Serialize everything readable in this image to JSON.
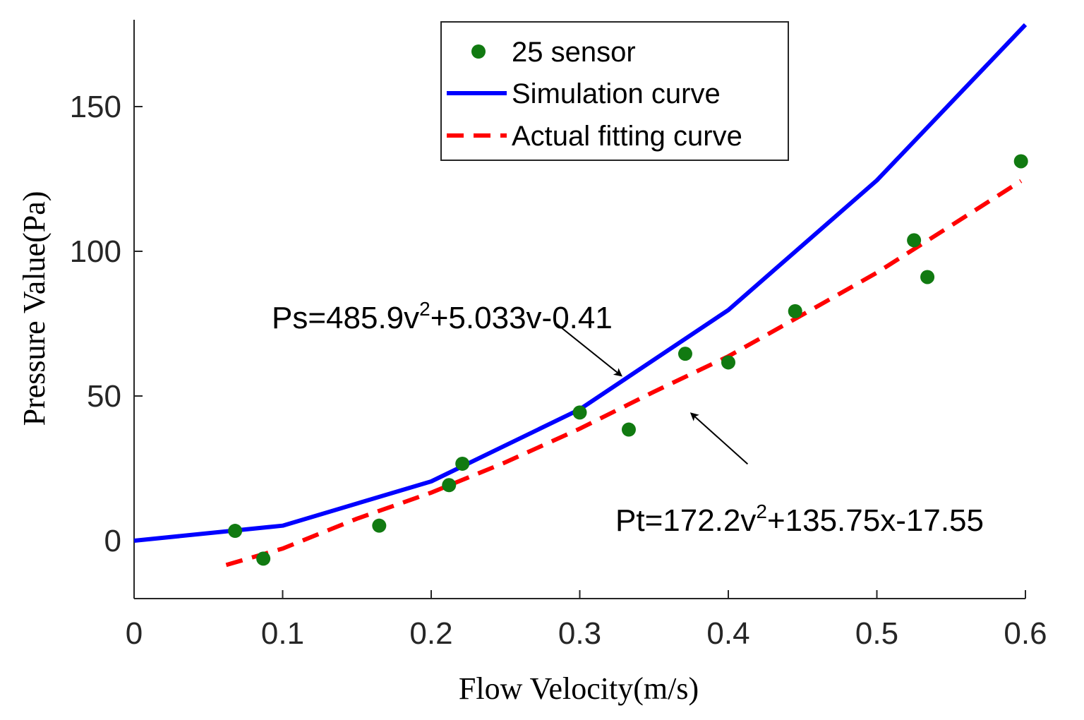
{
  "chart_data": {
    "type": "line",
    "xlabel": "Flow Velocity(m/s)",
    "ylabel": "Pressure Value(Pa)",
    "xlim": [
      0,
      0.6
    ],
    "ylim": [
      -20,
      180
    ],
    "xticks": [
      0,
      0.1,
      0.2,
      0.3,
      0.4,
      0.5,
      0.6
    ],
    "xtick_labels": [
      "0",
      "0.1",
      "0.2",
      "0.3",
      "0.4",
      "0.5",
      "0.6"
    ],
    "yticks": [
      0,
      50,
      100,
      150
    ],
    "ytick_labels": [
      "0",
      "50",
      "100",
      "150"
    ],
    "grid": false,
    "legend_position": "top-center",
    "series": [
      {
        "name": "25 sensor",
        "style": "scatter",
        "color": "#117a11",
        "x": [
          0.068,
          0.087,
          0.165,
          0.212,
          0.221,
          0.3,
          0.333,
          0.371,
          0.4,
          0.445,
          0.525,
          0.534,
          0.597
        ],
        "y": [
          3.4,
          -6.2,
          5.2,
          19.2,
          26.6,
          44.3,
          38.4,
          64.6,
          61.6,
          79.3,
          103.8,
          91.1,
          131.1
        ]
      },
      {
        "name": "Simulation curve",
        "style": "line",
        "color": "#0000ff",
        "x": [
          0,
          0.1,
          0.2,
          0.3,
          0.4,
          0.5,
          0.6
        ],
        "y": [
          0,
          5.2,
          20.5,
          45.4,
          79.7,
          124.5,
          178.3
        ]
      },
      {
        "name": "Actual fitting curve",
        "style": "dashed",
        "color": "#ff0000",
        "x": [
          0.062,
          0.1,
          0.15,
          0.2,
          0.25,
          0.3,
          0.35,
          0.4,
          0.45,
          0.5,
          0.55,
          0.597
        ],
        "y": [
          -8.4,
          -2.7,
          7.6,
          16.6,
          27.1,
          38.7,
          51.5,
          63.7,
          78.1,
          92.6,
          108.9,
          124.3
        ]
      }
    ],
    "annotations": [
      {
        "text_main": "Ps=485.9v",
        "text_sup": "2",
        "text_rest": "+5.033v-0.41",
        "arrow_from": [
          0.283,
          75.5
        ],
        "arrow_to": [
          0.328,
          57
        ]
      },
      {
        "text_main": "Pt=172.2v",
        "text_sup": "2",
        "text_rest": "+135.75x-17.55",
        "arrow_from": [
          0.413,
          26.5
        ],
        "arrow_to": [
          0.375,
          44
        ]
      }
    ]
  }
}
